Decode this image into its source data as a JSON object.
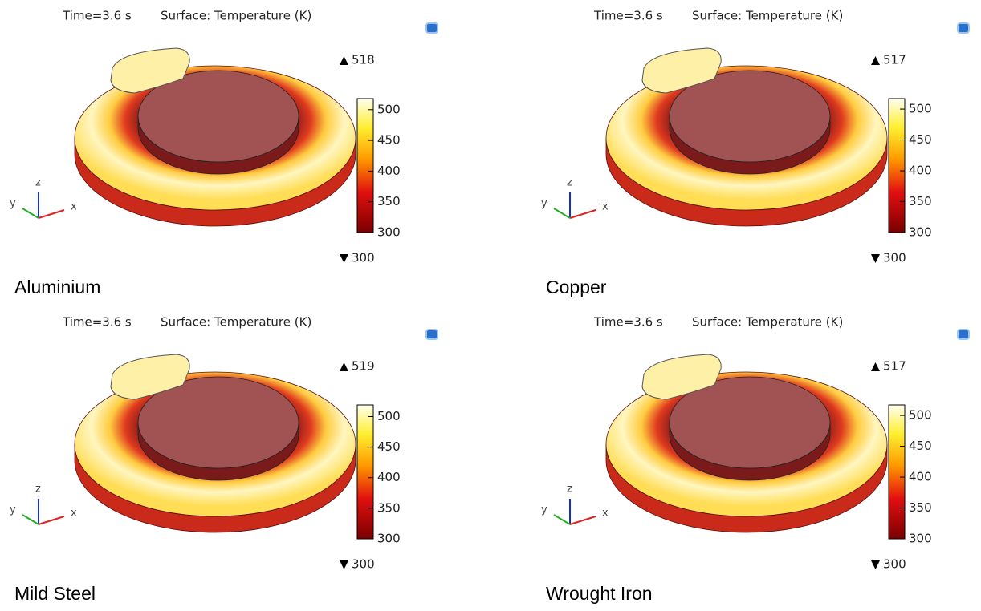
{
  "panels": [
    {
      "time": "Time=3.6 s",
      "surface": "Surface: Temperature (K)",
      "max": 518,
      "min": 300,
      "material": "Aluminium"
    },
    {
      "time": "Time=3.6 s",
      "surface": "Surface: Temperature (K)",
      "max": 517,
      "min": 300,
      "material": "Copper"
    },
    {
      "time": "Time=3.6 s",
      "surface": "Surface: Temperature (K)",
      "max": 519,
      "min": 300,
      "material": "Mild Steel"
    },
    {
      "time": "Time=3.6 s",
      "surface": "Surface: Temperature (K)",
      "max": 517,
      "min": 300,
      "material": "Wrought Iron"
    }
  ],
  "colorbar_ticks": [
    300,
    350,
    400,
    450,
    500
  ],
  "axes": {
    "x": "x",
    "y": "y",
    "z": "z"
  }
}
